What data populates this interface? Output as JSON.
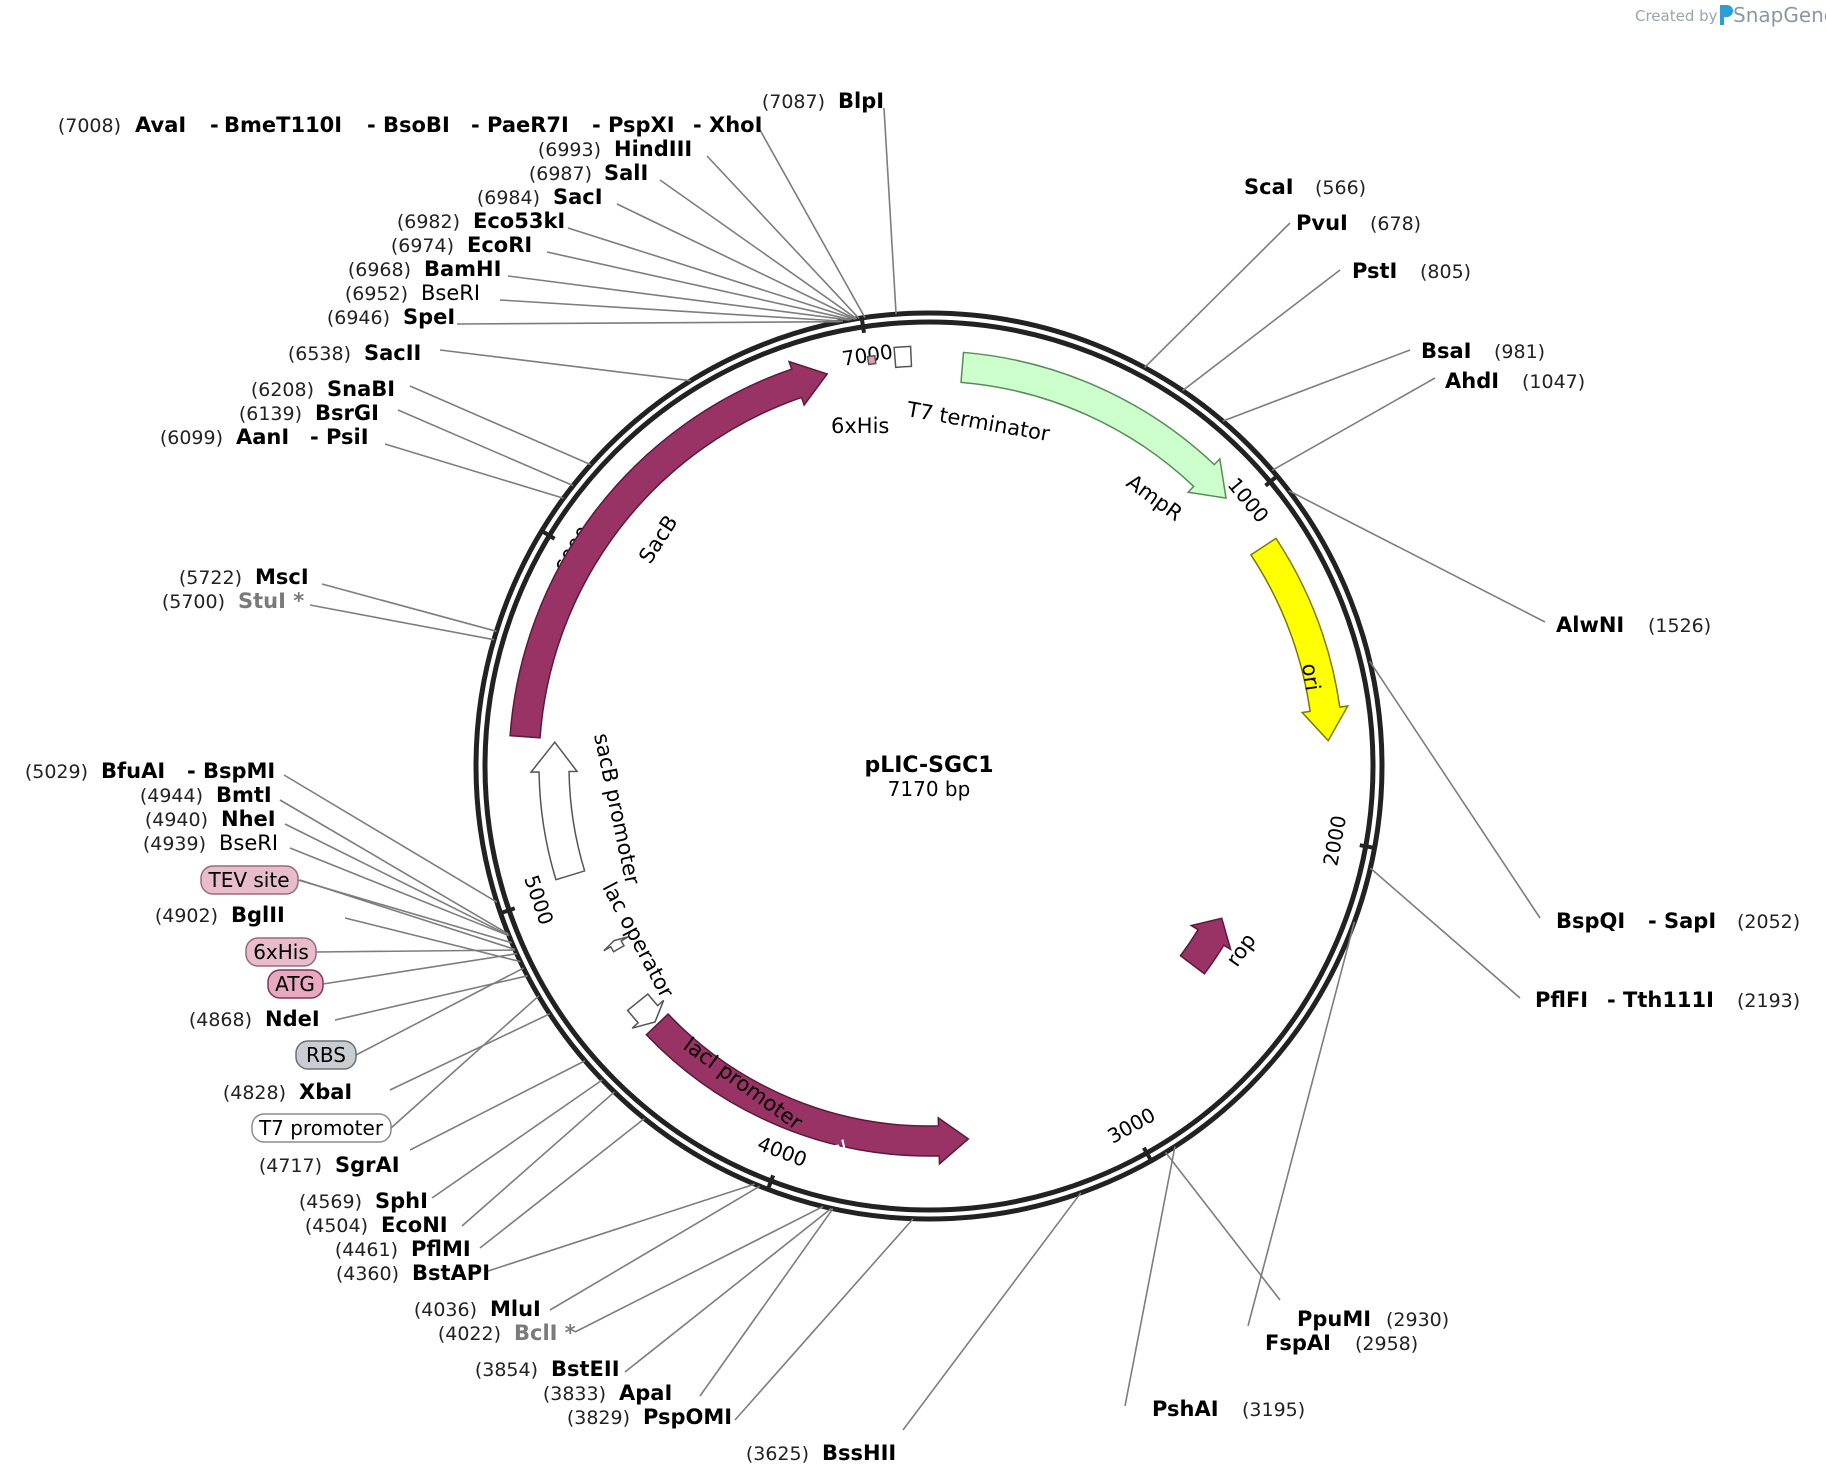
{
  "credit": {
    "created_by": "Created by",
    "brand": "SnapGene"
  },
  "plasmid": {
    "name": "pLIC-SGC1",
    "length_text": "7170 bp",
    "length_bp": 7170
  },
  "ticks": [
    {
      "bp": 1000,
      "label": "1000"
    },
    {
      "bp": 2000,
      "label": "2000"
    },
    {
      "bp": 3000,
      "label": "3000"
    },
    {
      "bp": 4000,
      "label": "4000"
    },
    {
      "bp": 5000,
      "label": "5000"
    },
    {
      "bp": 6000,
      "label": "6000"
    },
    {
      "bp": 7000,
      "label": "7000"
    }
  ],
  "features": [
    {
      "name": "AmpR",
      "color": "#ccffcc",
      "stroke": "#5a8a5a",
      "start_bp": 95,
      "end_bp": 955,
      "direction": "cw"
    },
    {
      "name": "ori",
      "color": "#ffff00",
      "stroke": "#7a7a00",
      "start_bp": 1130,
      "end_bp": 1720,
      "direction": "cw"
    },
    {
      "name": "rop",
      "color": "#993366",
      "stroke": "#5a1a3a",
      "start_bp": 2340,
      "end_bp": 2530,
      "direction": "ccw"
    },
    {
      "name": "lacI",
      "color": "#993366",
      "stroke": "#5a1a3a",
      "start_bp": 3465,
      "end_bp": 4510,
      "direction": "ccw"
    },
    {
      "name": "lacI promoter",
      "color": "#ffffff",
      "stroke": "#555555",
      "start_bp": 4520,
      "end_bp": 4600,
      "direction": "ccw"
    },
    {
      "name": "lac operator",
      "color": "#ffffff",
      "stroke": "#555555",
      "start_bp": 4770,
      "end_bp": 4800,
      "direction": "cw"
    },
    {
      "name": "sacB promoter",
      "color": "#ffffff",
      "stroke": "#555555",
      "start_bp": 5040,
      "end_bp": 5450,
      "direction": "cw"
    },
    {
      "name": "SacB",
      "color": "#993366",
      "stroke": "#5a1a3a",
      "start_bp": 5460,
      "end_bp": 6880,
      "direction": "cw"
    },
    {
      "name": "6xHis",
      "color": "#d9a0b8",
      "stroke": "#555555",
      "start_bp": 7000,
      "end_bp": 7020,
      "direction": "none"
    },
    {
      "name": "T7 terminator",
      "color": "#ffffff",
      "stroke": "#555555",
      "start_bp": 7075,
      "end_bp": 7120,
      "direction": "none"
    }
  ],
  "sites": [
    {
      "names": [
        "AvaI",
        "BmeT110I",
        "BsoBI",
        "PaeR7I",
        "PspXI",
        "XhoI"
      ],
      "pos": "(7008)",
      "bp": 7008
    },
    {
      "names": [
        "BlpI"
      ],
      "pos": "(7087)",
      "bp": 7087
    },
    {
      "names": [
        "HindIII"
      ],
      "pos": "(6993)",
      "bp": 6993
    },
    {
      "names": [
        "SalI"
      ],
      "pos": "(6987)",
      "bp": 6987
    },
    {
      "names": [
        "SacI"
      ],
      "pos": "(6984)",
      "bp": 6984
    },
    {
      "names": [
        "Eco53kI"
      ],
      "pos": "(6982)",
      "bp": 6982
    },
    {
      "names": [
        "EcoRI"
      ],
      "pos": "(6974)",
      "bp": 6974
    },
    {
      "names": [
        "BamHI"
      ],
      "pos": "(6968)",
      "bp": 6968
    },
    {
      "names": [
        "BseRI"
      ],
      "pos": "(6952)",
      "bp": 6952,
      "style": "thin"
    },
    {
      "names": [
        "SpeI"
      ],
      "pos": "(6946)",
      "bp": 6946
    },
    {
      "names": [
        "SacII"
      ],
      "pos": "(6538)",
      "bp": 6538
    },
    {
      "names": [
        "SnaBI"
      ],
      "pos": "(6208)",
      "bp": 6208
    },
    {
      "names": [
        "BsrGI"
      ],
      "pos": "(6139)",
      "bp": 6139
    },
    {
      "names": [
        "AanI",
        "PsiI"
      ],
      "pos": "(6099)",
      "bp": 6099
    },
    {
      "names": [
        "MscI"
      ],
      "pos": "(5722)",
      "bp": 5722
    },
    {
      "names": [
        "StuI *"
      ],
      "pos": "(5700)",
      "bp": 5700,
      "style": "grey"
    },
    {
      "names": [
        "BfuAI",
        "BspMI"
      ],
      "pos": "(5029)",
      "bp": 5029
    },
    {
      "names": [
        "BmtI"
      ],
      "pos": "(4944)",
      "bp": 4944
    },
    {
      "names": [
        "NheI"
      ],
      "pos": "(4940)",
      "bp": 4940
    },
    {
      "names": [
        "BseRI"
      ],
      "pos": "(4939)",
      "bp": 4939,
      "style": "thin"
    },
    {
      "names": [
        "BglII"
      ],
      "pos": "(4902)",
      "bp": 4902
    },
    {
      "names": [
        "NdeI"
      ],
      "pos": "(4868)",
      "bp": 4868
    },
    {
      "names": [
        "XbaI"
      ],
      "pos": "(4828)",
      "bp": 4828
    },
    {
      "names": [
        "SgrAI"
      ],
      "pos": "(4717)",
      "bp": 4717
    },
    {
      "names": [
        "SphI"
      ],
      "pos": "(4569)",
      "bp": 4569
    },
    {
      "names": [
        "EcoNI"
      ],
      "pos": "(4504)",
      "bp": 4504
    },
    {
      "names": [
        "PflMI"
      ],
      "pos": "(4461)",
      "bp": 4461
    },
    {
      "names": [
        "BstAPI"
      ],
      "pos": "(4360)",
      "bp": 4360
    },
    {
      "names": [
        "MluI"
      ],
      "pos": "(4036)",
      "bp": 4036
    },
    {
      "names": [
        "BclI *"
      ],
      "pos": "(4022)",
      "bp": 4022,
      "style": "grey"
    },
    {
      "names": [
        "BstEII"
      ],
      "pos": "(3854)",
      "bp": 3854
    },
    {
      "names": [
        "ApaI"
      ],
      "pos": "(3833)",
      "bp": 3833
    },
    {
      "names": [
        "PspOMI"
      ],
      "pos": "(3829)",
      "bp": 3829
    },
    {
      "names": [
        "BssHII"
      ],
      "pos": "(3625)",
      "bp": 3625
    },
    {
      "names": [
        "PshAI"
      ],
      "pos": "(3195)",
      "bp": 3195
    },
    {
      "names": [
        "PpuMI"
      ],
      "pos": "(2930)",
      "bp": 2930
    },
    {
      "names": [
        "FspAI"
      ],
      "pos": "(2958)",
      "bp": 2958
    },
    {
      "names": [
        "PflFI",
        "Tth111I"
      ],
      "pos": "(2193)",
      "bp": 2193
    },
    {
      "names": [
        "BspQI",
        "SapI"
      ],
      "pos": "(2052)",
      "bp": 2052
    },
    {
      "names": [
        "AlwNI"
      ],
      "pos": "(1526)",
      "bp": 1526
    },
    {
      "names": [
        "AhdI"
      ],
      "pos": "(1047)",
      "bp": 1047
    },
    {
      "names": [
        "BsaI"
      ],
      "pos": "(981)",
      "bp": 981
    },
    {
      "names": [
        "PstI"
      ],
      "pos": "(805)",
      "bp": 805
    },
    {
      "names": [
        "PvuI"
      ],
      "pos": "(678)",
      "bp": 678
    },
    {
      "names": [
        "ScaI"
      ],
      "pos": "(566)",
      "bp": 566
    }
  ],
  "badges": [
    {
      "label": "TEV site",
      "fill": "#e8bccb",
      "stroke": "#9a6a7e"
    },
    {
      "label": "6xHis",
      "fill": "#e8bccb",
      "stroke": "#9a6a7e"
    },
    {
      "label": "ATG",
      "fill": "#e8a8c0",
      "stroke": "#7a3a55"
    },
    {
      "label": "RBS",
      "fill": "#c8cdd2",
      "stroke": "#6a7077"
    },
    {
      "label": "T7 promoter",
      "fill": "#ffffff",
      "stroke": "#8a8a8a"
    }
  ]
}
